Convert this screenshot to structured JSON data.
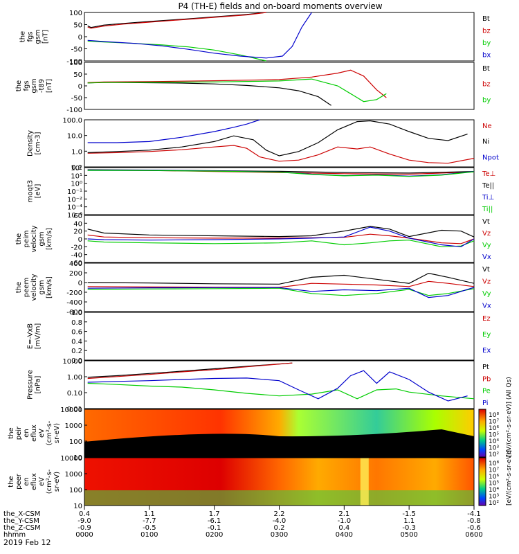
{
  "chart_data": {
    "type": "line",
    "title": "P4 (TH-E) fields and on-board moments overview",
    "date_label": "2019 Feb 12",
    "x": {
      "unit": "hhmm",
      "ticks": [
        "0000",
        "0100",
        "0200",
        "0300",
        "0400",
        "0500",
        "0600"
      ],
      "range": [
        "0000",
        "0600"
      ]
    },
    "ephemeris": [
      {
        "label": "the_X-CSM",
        "values": [
          "0.4",
          "1.1",
          "1.7",
          "2.2",
          "2.1",
          "-1.5",
          "-4.1"
        ]
      },
      {
        "label": "the_Y-CSM",
        "values": [
          "-9.0",
          "-7.7",
          "-6.1",
          "-4.0",
          "-1.0",
          "1.1",
          "-0.8"
        ]
      },
      {
        "label": "the_Z-CSM",
        "values": [
          "-0.9",
          "-0.5",
          "-0.1",
          "0.2",
          "0.4",
          "-0.3",
          "-0.6"
        ]
      },
      {
        "label": "hhmm",
        "values": [
          "0000",
          "0100",
          "0200",
          "0300",
          "0400",
          "0500",
          "0600"
        ]
      }
    ],
    "panels": [
      {
        "id": "fgs-gsm",
        "ylabel": [
          "the",
          "fgs",
          "gsm",
          "[nT]"
        ],
        "ylim": [
          -100,
          100
        ],
        "ticks": [
          "100",
          "50",
          "0",
          "-50",
          "-100"
        ],
        "series": [
          {
            "name": "Bt",
            "color": "#000000",
            "x": [
              0.05,
              0.1,
              0.3,
              0.6,
              1,
              1.5,
              2,
              2.5,
              2.8
            ],
            "y": [
              45,
              38,
              48,
              55,
              63,
              72,
              82,
              92,
              100
            ]
          },
          {
            "name": "bz",
            "color": "#cc0000",
            "x": [
              0.05,
              0.1,
              0.3,
              0.6,
              1,
              1.5,
              2,
              2.5,
              2.8
            ],
            "y": [
              40,
              35,
              44,
              52,
              60,
              70,
              80,
              90,
              100
            ]
          },
          {
            "name": "by",
            "color": "#00cc00",
            "x": [
              0.05,
              0.3,
              0.8,
              1.2,
              1.6,
              2,
              2.4,
              2.8
            ],
            "y": [
              -18,
              -22,
              -28,
              -34,
              -42,
              -55,
              -75,
              -100
            ]
          },
          {
            "name": "bx",
            "color": "#0000cc",
            "x": [
              0.05,
              0.3,
              0.8,
              1.2,
              1.6,
              2,
              2.4,
              2.8,
              3.05,
              3.2,
              3.35,
              3.5
            ],
            "y": [
              -15,
              -20,
              -28,
              -38,
              -52,
              -68,
              -80,
              -88,
              -80,
              -40,
              40,
              100
            ]
          }
        ]
      },
      {
        "id": "fgs-gsm-t89",
        "ylabel": [
          "the",
          "fgs",
          "gsm",
          "-t89",
          "[nT]"
        ],
        "ylim": [
          -140,
          100
        ],
        "ticks": [
          "100",
          "50",
          "0",
          "-50",
          "-100"
        ],
        "series": [
          {
            "name": "Bt",
            "color": "#000000",
            "x": [
              0.05,
              0.3,
              1,
              1.5,
              2,
              2.5,
              3,
              3.3,
              3.6,
              3.8
            ],
            "y": [
              -5,
              -2,
              -4,
              -6,
              -10,
              -18,
              -30,
              -45,
              -75,
              -120
            ]
          },
          {
            "name": "bz",
            "color": "#cc0000",
            "x": [
              0.05,
              0.3,
              1,
              2,
              3,
              3.5,
              3.9,
              4.1,
              4.3,
              4.5,
              4.65
            ],
            "y": [
              -3,
              0,
              2,
              6,
              12,
              25,
              45,
              60,
              30,
              -40,
              -80
            ]
          },
          {
            "name": "by",
            "color": "#00cc00",
            "x": [
              0.05,
              0.3,
              1,
              2,
              3,
              3.5,
              3.9,
              4.1,
              4.3,
              4.5,
              4.65
            ],
            "y": [
              -5,
              -3,
              -2,
              0,
              5,
              15,
              -20,
              -60,
              -100,
              -90,
              -60
            ]
          }
        ]
      },
      {
        "id": "density",
        "ylabel": [
          "Density",
          "[cm-3]"
        ],
        "log": true,
        "ylim": [
          0.1,
          200
        ],
        "ticks": [
          "100.0",
          "10.0",
          "1.0",
          "0.1"
        ],
        "series": [
          {
            "name": "Ne",
            "color": "#cc0000",
            "x": [
              0.05,
              0.5,
              1,
              1.5,
              2,
              2.3,
              2.5,
              2.7,
              3,
              3.3,
              3.6,
              3.9,
              4.2,
              4.4,
              4.7,
              5,
              5.3,
              5.6,
              6
            ],
            "y": [
              0.9,
              1.0,
              1.2,
              1.6,
              2.5,
              3.2,
              2,
              0.5,
              0.25,
              0.3,
              0.7,
              2.5,
              1.8,
              2.5,
              0.8,
              0.3,
              0.2,
              0.18,
              0.4
            ]
          },
          {
            "name": "Ni",
            "color": "#000000",
            "x": [
              0.05,
              0.5,
              1,
              1.5,
              2,
              2.3,
              2.6,
              2.8,
              3,
              3.3,
              3.6,
              3.9,
              4.2,
              4.4,
              4.7,
              5,
              5.3,
              5.6,
              5.9
            ],
            "y": [
              1.0,
              1.2,
              1.5,
              2.5,
              6,
              15,
              8,
              1.5,
              0.6,
              1.2,
              5,
              40,
              150,
              170,
              100,
              30,
              10,
              7,
              20
            ]
          },
          {
            "name": "Npot",
            "color": "#0000cc",
            "x": [
              0.05,
              0.5,
              1,
              1.5,
              2,
              2.3,
              2.5,
              2.7
            ],
            "y": [
              5,
              5,
              6,
              12,
              30,
              60,
              100,
              200
            ]
          }
        ]
      },
      {
        "id": "moqt3",
        "ylabel": [
          "moqt3",
          "[eV]"
        ],
        "log": true,
        "ylim": [
          1e-06,
          10000
        ],
        "ticks": [
          "10²",
          "10¹",
          "10⁰",
          "10⁻¹",
          "10⁻²",
          "10⁻⁴",
          "10⁻⁶"
        ],
        "series": [
          {
            "name": "Te⊥",
            "color": "#cc0000",
            "x": [
              0.05,
              1,
              2,
              3,
              4,
              5,
              6
            ],
            "y": [
              3000,
              2500,
              1500,
              900,
              500,
              400,
              1200
            ]
          },
          {
            "name": "Te||",
            "color": "#000000",
            "x": [
              0.05,
              1,
              2,
              3,
              4,
              5,
              6
            ],
            "y": [
              3500,
              3000,
              2200,
              1600,
              900,
              700,
              1500
            ]
          },
          {
            "name": "Ti⊥",
            "color": "#0000cc",
            "x": [
              0.05,
              1,
              2,
              3,
              3.5,
              4,
              4.5,
              5,
              5.5,
              6
            ],
            "y": [
              3000,
              2800,
              2000,
              1200,
              400,
              200,
              300,
              150,
              300,
              1500
            ]
          },
          {
            "name": "Ti||",
            "color": "#00cc00",
            "x": [
              0.05,
              1,
              2,
              3,
              3.5,
              4,
              4.5,
              5,
              5.5,
              6
            ],
            "y": [
              2500,
              2300,
              1800,
              1100,
              350,
              180,
              250,
              130,
              250,
              1300
            ]
          }
        ]
      },
      {
        "id": "peim-velocity",
        "ylabel": [
          "the",
          "peim",
          "velocity",
          "gsm",
          "[km/s]"
        ],
        "ylim": [
          -60,
          60
        ],
        "ticks": [
          "60",
          "40",
          "20",
          "0",
          "-20",
          "-40",
          "-60"
        ],
        "series": [
          {
            "name": "Vt",
            "color": "#000000",
            "x": [
              0.05,
              0.3,
              1,
              2,
              3,
              3.5,
              4,
              4.4,
              4.7,
              5,
              5.5,
              5.8,
              6
            ],
            "y": [
              25,
              15,
              10,
              8,
              6,
              8,
              20,
              32,
              25,
              6,
              22,
              20,
              5
            ]
          },
          {
            "name": "Vz",
            "color": "#cc0000",
            "x": [
              0.05,
              0.3,
              1,
              2,
              3,
              3.5,
              4,
              4.4,
              4.7,
              5,
              5.5,
              5.8,
              6
            ],
            "y": [
              10,
              5,
              3,
              2,
              2,
              3,
              4,
              12,
              8,
              2,
              -10,
              -12,
              0
            ]
          },
          {
            "name": "Vy",
            "color": "#00cc00",
            "x": [
              0.05,
              0.3,
              1,
              2,
              3,
              3.5,
              4,
              4.4,
              4.7,
              5,
              5.5,
              5.8,
              6
            ],
            "y": [
              -5,
              -8,
              -10,
              -12,
              -10,
              -5,
              -15,
              -10,
              -5,
              -3,
              -20,
              -18,
              -5
            ]
          },
          {
            "name": "Vx",
            "color": "#0000cc",
            "x": [
              0.05,
              0.3,
              1,
              2,
              3,
              3.5,
              4,
              4.4,
              4.7,
              5,
              5.5,
              5.8,
              6
            ],
            "y": [
              0,
              -2,
              -3,
              -2,
              0,
              2,
              5,
              30,
              20,
              2,
              -15,
              -20,
              0
            ]
          }
        ]
      },
      {
        "id": "peem-velocity",
        "ylabel": [
          "the",
          "peem",
          "velocity",
          "gsm",
          "[km/s]"
        ],
        "ylim": [
          -600,
          600
        ],
        "ticks": [
          "400",
          "200",
          "0",
          "-200",
          "-400",
          "-600"
        ],
        "series": [
          {
            "name": "Vt",
            "color": "#000000",
            "x": [
              0.05,
              1,
              2,
              3,
              3.5,
              4,
              4.5,
              5,
              5.3,
              5.6,
              6
            ],
            "y": [
              120,
              110,
              90,
              80,
              250,
              300,
              200,
              100,
              350,
              250,
              100
            ]
          },
          {
            "name": "Vz",
            "color": "#cc0000",
            "x": [
              0.05,
              1,
              2,
              3,
              3.5,
              4,
              4.5,
              5,
              5.3,
              5.6,
              6
            ],
            "y": [
              20,
              10,
              5,
              0,
              100,
              80,
              60,
              20,
              150,
              100,
              20
            ]
          },
          {
            "name": "Vy",
            "color": "#00cc00",
            "x": [
              0.05,
              1,
              2,
              3,
              3.5,
              4,
              4.5,
              5,
              5.3,
              5.6,
              6
            ],
            "y": [
              -50,
              -40,
              -30,
              -20,
              -150,
              -200,
              -150,
              -50,
              -200,
              -150,
              -30
            ]
          },
          {
            "name": "Vx",
            "color": "#0000cc",
            "x": [
              0.05,
              1,
              2,
              3,
              3.5,
              4,
              4.5,
              5,
              5.3,
              5.6,
              6
            ],
            "y": [
              -20,
              -10,
              -5,
              -5,
              -100,
              -60,
              -80,
              -20,
              -250,
              -200,
              0
            ]
          }
        ]
      },
      {
        "id": "efield",
        "ylabel": [
          "E=-VxB",
          "[mV/m]"
        ],
        "ylim": [
          0,
          1
        ],
        "ticks": [
          "1.0",
          "0.8",
          "0.6",
          "0.4",
          "0.2",
          "0.0"
        ],
        "series": [
          {
            "name": "Ez",
            "color": "#cc0000",
            "x": [],
            "y": []
          },
          {
            "name": "Ey",
            "color": "#00cc00",
            "x": [],
            "y": []
          },
          {
            "name": "Ex",
            "color": "#0000cc",
            "x": [],
            "y": []
          }
        ]
      },
      {
        "id": "pressure",
        "ylabel": [
          "Pressure",
          "[nPa]"
        ],
        "log": true,
        "ylim": [
          0.005,
          30
        ],
        "ticks": [
          "10.00",
          "1.00",
          "0.10",
          "0.01"
        ],
        "series": [
          {
            "name": "Pt",
            "color": "#000000",
            "x": [
              0.05,
              0.5,
              1,
              1.5,
              2,
              2.5,
              3.2
            ],
            "y": [
              1.5,
              2,
              3,
              4.5,
              7,
              11,
              20
            ]
          },
          {
            "name": "Pb",
            "color": "#cc0000",
            "x": [
              0.05,
              0.5,
              1,
              1.5,
              2,
              2.5,
              3.2
            ],
            "y": [
              1.2,
              1.7,
              2.5,
              4,
              6,
              10,
              20
            ]
          },
          {
            "name": "Pe",
            "color": "#00cc00",
            "x": [
              0.05,
              0.5,
              1,
              1.5,
              2,
              2.5,
              3,
              3.5,
              3.9,
              4.2,
              4.5,
              4.8,
              5,
              5.5,
              6
            ],
            "y": [
              0.5,
              0.4,
              0.3,
              0.25,
              0.15,
              0.08,
              0.05,
              0.07,
              0.15,
              0.03,
              0.15,
              0.18,
              0.1,
              0.05,
              0.03
            ]
          },
          {
            "name": "Pi",
            "color": "#0000cc",
            "x": [
              0.05,
              0.5,
              1,
              1.5,
              2,
              2.5,
              3,
              3.3,
              3.6,
              3.9,
              4.1,
              4.3,
              4.5,
              4.7,
              5,
              5.3,
              5.6,
              5.9
            ],
            "y": [
              0.6,
              0.7,
              0.8,
              1,
              1.2,
              1.3,
              0.8,
              0.15,
              0.03,
              0.2,
              2,
              5,
              0.5,
              4,
              1,
              0.1,
              0.02,
              0.05
            ]
          }
        ]
      },
      {
        "id": "peir-spec",
        "type": "heatmap",
        "ylabel": [
          "the",
          "peir",
          "en",
          "eflux",
          "eV",
          "(cm²-s-",
          "sr-eV)"
        ],
        "ticks": [
          "10000",
          "1000",
          "100",
          "10"
        ],
        "colorbar_label": "[eV/(cm²-s-sr-eV)] (All Qs)"
      },
      {
        "id": "peer-spec",
        "type": "heatmap",
        "ylabel": [
          "the",
          "peer",
          "en",
          "eflux",
          "eV",
          "(cm²-s-",
          "sr-eV)"
        ],
        "ticks": [
          "10000",
          "1000",
          "100",
          "10"
        ],
        "colorbar_label": "[eV/(cm²-s-sr-eV)]"
      }
    ],
    "colorbar_ticks": [
      "10⁸",
      "10⁷",
      "10⁶",
      "10⁵",
      "10⁴",
      "10³",
      "10²"
    ]
  }
}
